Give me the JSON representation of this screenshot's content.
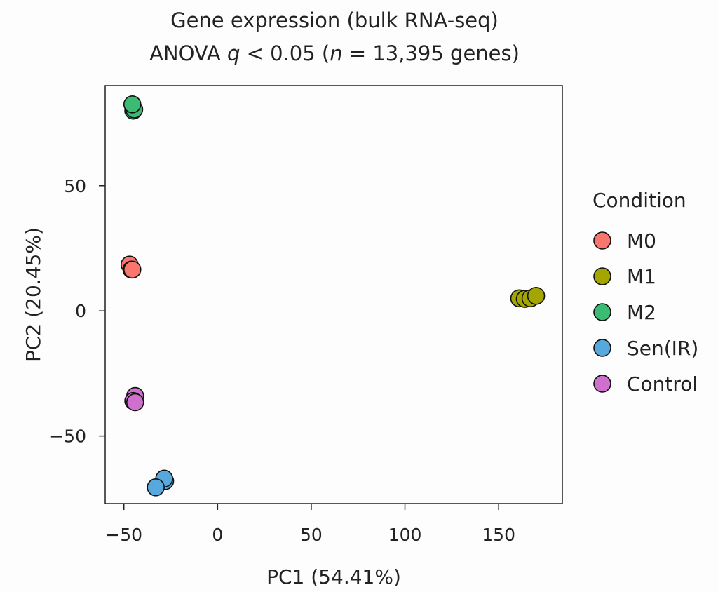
{
  "chart_data": {
    "type": "scatter",
    "title": {
      "line1": "Gene expression (bulk RNA-seq)",
      "line2_prefix": "ANOVA ",
      "line2_q": "q",
      "line2_mid": " < 0.05 (",
      "line2_n": "n",
      "line2_suffix": " = 13,395 genes)"
    },
    "xlabel": "PC1 (54.41%)",
    "ylabel": "PC2 (20.45%)",
    "xlim": [
      -60,
      184
    ],
    "ylim": [
      -77,
      90
    ],
    "xticks": [
      -50,
      0,
      50,
      100,
      150
    ],
    "xtick_labels": [
      "−50",
      "0",
      "50",
      "100",
      "150"
    ],
    "yticks": [
      -50,
      0,
      50
    ],
    "ytick_labels": [
      "−50",
      "0",
      "50"
    ],
    "grid": false,
    "legend": {
      "title": "Condition",
      "position": "right"
    },
    "series": [
      {
        "name": "M0",
        "color": "#f8766d",
        "points": [
          [
            -47,
            18.5
          ],
          [
            -46,
            16.5
          ],
          [
            -45.5,
            16.5
          ]
        ]
      },
      {
        "name": "M1",
        "color": "#a3a500",
        "points": [
          [
            161,
            5
          ],
          [
            164,
            4.8
          ],
          [
            167,
            5
          ],
          [
            170,
            6
          ]
        ]
      },
      {
        "name": "M2",
        "color": "#3cbb75",
        "points": [
          [
            -45,
            80
          ],
          [
            -44.5,
            80.5
          ],
          [
            -45.5,
            82.5
          ]
        ]
      },
      {
        "name": "Sen(IR)",
        "color": "#56a8dd",
        "points": [
          [
            -28,
            -68
          ],
          [
            -28.5,
            -67
          ],
          [
            -33,
            -70.5
          ]
        ]
      },
      {
        "name": "Control",
        "color": "#cf6fce",
        "points": [
          [
            -44,
            -34
          ],
          [
            -45,
            -36
          ],
          [
            -44,
            -36.5
          ]
        ]
      }
    ]
  }
}
